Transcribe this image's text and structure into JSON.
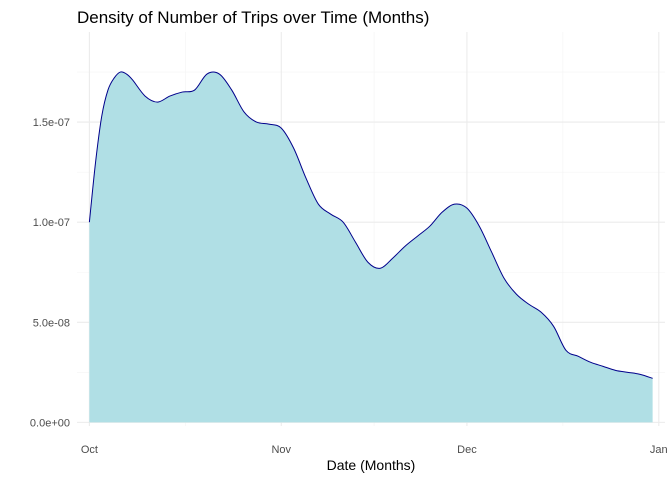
{
  "chart_data": {
    "type": "area",
    "title": "Density of Number of Trips over Time (Months)",
    "xlabel": "Date (Months)",
    "ylabel": "",
    "x_ticks": [
      "Oct",
      "Nov",
      "Dec",
      "Jan"
    ],
    "xlim": [
      "2014-09-29",
      "2015-01-02"
    ],
    "y_ticks": [
      "0.0e+00",
      "5.0e-08",
      "1.0e-07",
      "1.5e-07"
    ],
    "y_tick_values": [
      0,
      5e-08,
      1e-07,
      1.5e-07
    ],
    "ylim": [
      -1.8e-09,
      1.95e-07
    ],
    "fill_color": "#b0dfe5",
    "line_color": "#00008b",
    "grid": true,
    "x": [
      "2014-10-01",
      "2014-10-02",
      "2014-10-03",
      "2014-10-04",
      "2014-10-05",
      "2014-10-06",
      "2014-10-07",
      "2014-10-08",
      "2014-10-10",
      "2014-10-12",
      "2014-10-14",
      "2014-10-16",
      "2014-10-18",
      "2014-10-20",
      "2014-10-22",
      "2014-10-24",
      "2014-10-26",
      "2014-10-28",
      "2014-10-30",
      "2014-11-01",
      "2014-11-03",
      "2014-11-05",
      "2014-11-07",
      "2014-11-09",
      "2014-11-11",
      "2014-11-13",
      "2014-11-15",
      "2014-11-17",
      "2014-11-19",
      "2014-11-21",
      "2014-11-23",
      "2014-11-25",
      "2014-11-27",
      "2014-11-29",
      "2014-12-01",
      "2014-12-03",
      "2014-12-05",
      "2014-12-07",
      "2014-12-09",
      "2014-12-11",
      "2014-12-13",
      "2014-12-15",
      "2014-12-17",
      "2014-12-19",
      "2014-12-21",
      "2014-12-23",
      "2014-12-25",
      "2014-12-27",
      "2014-12-29",
      "2014-12-31"
    ],
    "values": [
      1e-07,
      1.3e-07,
      1.53e-07,
      1.66e-07,
      1.72e-07,
      1.75e-07,
      1.74e-07,
      1.71e-07,
      1.63e-07,
      1.6e-07,
      1.63e-07,
      1.65e-07,
      1.66e-07,
      1.74e-07,
      1.74e-07,
      1.66e-07,
      1.55e-07,
      1.5e-07,
      1.49e-07,
      1.47e-07,
      1.37e-07,
      1.22e-07,
      1.09e-07,
      1.04e-07,
      1e-07,
      9e-08,
      8e-08,
      7.7e-08,
      8.2e-08,
      8.8e-08,
      9.3e-08,
      9.8e-08,
      1.05e-07,
      1.09e-07,
      1.07e-07,
      9.8e-08,
      8.5e-08,
      7.2e-08,
      6.4e-08,
      5.9e-08,
      5.5e-08,
      4.8e-08,
      3.6e-08,
      3.3e-08,
      3e-08,
      2.8e-08,
      2.6e-08,
      2.5e-08,
      2.4e-08,
      2.2e-08
    ]
  }
}
